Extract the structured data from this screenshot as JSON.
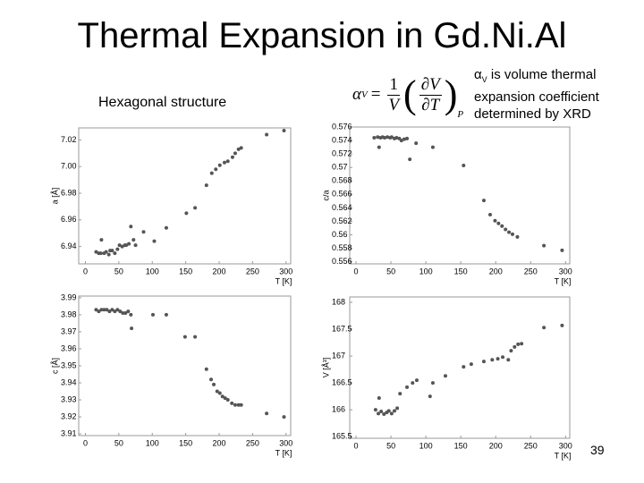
{
  "title": "Thermal Expansion in Gd.Ni.Al",
  "subtitle": "Hexagonal structure",
  "formula": {
    "lhs": "α",
    "lhs_sub": "V",
    "equals": "=",
    "numerator": "1",
    "denominator": "V",
    "partial_num": "∂V",
    "partial_den": "∂T",
    "subscript": "P"
  },
  "note": {
    "symbol": "α",
    "symbol_sub": "V",
    "text": "is volume thermal expansion coefficient determined by XRD"
  },
  "page_number": "39",
  "chart_data": [
    {
      "type": "scatter",
      "x_label": "T [K]",
      "y_label": "a [Å]",
      "color": "#555555",
      "xlim": [
        -10,
        307
      ],
      "xticks": [
        0,
        50,
        100,
        150,
        200,
        250,
        300
      ],
      "ylim": [
        6.927,
        7.029
      ],
      "yticks": [
        6.94,
        6.96,
        6.98,
        {
          "value": 7,
          "label": "7.00"
        },
        7.02
      ],
      "x": [
        16,
        20,
        23,
        24,
        28,
        31,
        35,
        37,
        40,
        44,
        48,
        51,
        55,
        59,
        61,
        65,
        68,
        72,
        75,
        87,
        103,
        121,
        151,
        164,
        181,
        189,
        195,
        201,
        208,
        213,
        220,
        224,
        229,
        233,
        271,
        297
      ],
      "values": [
        6.936,
        6.935,
        6.935,
        6.945,
        6.935,
        6.936,
        6.934,
        6.937,
        6.937,
        6.935,
        6.938,
        6.941,
        6.94,
        6.941,
        6.941,
        6.942,
        6.955,
        6.945,
        6.941,
        6.951,
        6.944,
        6.954,
        6.965,
        6.969,
        6.986,
        6.995,
        6.998,
        7.001,
        7.003,
        7.004,
        7.007,
        7.01,
        7.013,
        7.014,
        7.024,
        7.027
      ]
    },
    {
      "type": "scatter",
      "x_label": "T [K]",
      "y_label": "c/a",
      "color": "#555555",
      "xlim": [
        -9,
        306
      ],
      "xticks": [
        0,
        50,
        100,
        150,
        200,
        250,
        300
      ],
      "ylim": [
        0.5557,
        0.576
      ],
      "yticks": [
        0.556,
        0.558,
        0.56,
        0.562,
        0.564,
        0.566,
        0.568,
        0.57,
        0.572,
        0.574,
        0.576
      ],
      "x": [
        26,
        31,
        35,
        38,
        41,
        45,
        49,
        51,
        55,
        58,
        62,
        65,
        69,
        73,
        33,
        77,
        86,
        110,
        154,
        183,
        192,
        199,
        204,
        209,
        214,
        219,
        224,
        231,
        269,
        295
      ],
      "values": [
        0.5744,
        0.5745,
        0.5744,
        0.5745,
        0.5744,
        0.5745,
        0.5744,
        0.5745,
        0.5743,
        0.5744,
        0.5743,
        0.574,
        0.5742,
        0.5743,
        0.573,
        0.5712,
        0.5736,
        0.573,
        0.5703,
        0.5651,
        0.563,
        0.5621,
        0.5617,
        0.5613,
        0.5608,
        0.5604,
        0.5601,
        0.5597,
        0.5584,
        0.5577
      ]
    },
    {
      "type": "scatter",
      "x_label": "T [K]",
      "y_label": "c [Å]",
      "color": "#555555",
      "xlim": [
        -10,
        307
      ],
      "xticks": [
        0,
        50,
        100,
        150,
        200,
        250,
        300
      ],
      "ylim": [
        3.909,
        3.991
      ],
      "yticks": [
        3.91,
        3.92,
        3.93,
        3.94,
        3.95,
        3.96,
        3.97,
        3.98,
        3.99
      ],
      "x": [
        16,
        20,
        24,
        28,
        32,
        36,
        40,
        44,
        48,
        52,
        56,
        60,
        64,
        68,
        69,
        101,
        121,
        149,
        164,
        181,
        188,
        192,
        197,
        201,
        205,
        209,
        213,
        219,
        224,
        229,
        233,
        271,
        297
      ],
      "values": [
        3.983,
        3.982,
        3.983,
        3.983,
        3.983,
        3.982,
        3.983,
        3.982,
        3.983,
        3.982,
        3.981,
        3.981,
        3.982,
        3.98,
        3.972,
        3.98,
        3.98,
        3.967,
        3.967,
        3.948,
        3.942,
        3.939,
        3.935,
        3.934,
        3.932,
        3.931,
        3.93,
        3.928,
        3.927,
        3.927,
        3.927,
        3.922,
        3.92
      ]
    },
    {
      "type": "scatter",
      "x_label": "T [K]",
      "y_label": "V [Å³]",
      "color": "#555555",
      "xlim": [
        -9,
        306
      ],
      "xticks": [
        0,
        50,
        100,
        150,
        200,
        250,
        300
      ],
      "ylim": [
        165.47,
        168.1
      ],
      "yticks": [
        165.5,
        166,
        166.5,
        167,
        167.5,
        168
      ],
      "x": [
        28,
        32,
        36,
        40,
        44,
        47,
        51,
        55,
        59,
        33,
        63,
        73,
        81,
        87,
        106,
        110,
        128,
        154,
        165,
        183,
        195,
        203,
        210,
        218,
        222,
        227,
        232,
        237,
        269,
        295
      ],
      "values": [
        166.0,
        165.93,
        165.97,
        165.92,
        165.95,
        165.98,
        165.93,
        165.98,
        166.03,
        166.22,
        166.3,
        166.42,
        166.5,
        166.55,
        166.25,
        166.5,
        166.63,
        166.8,
        166.85,
        166.9,
        166.93,
        166.95,
        166.98,
        166.93,
        167.1,
        167.17,
        167.22,
        167.23,
        167.53,
        167.57
      ]
    }
  ]
}
